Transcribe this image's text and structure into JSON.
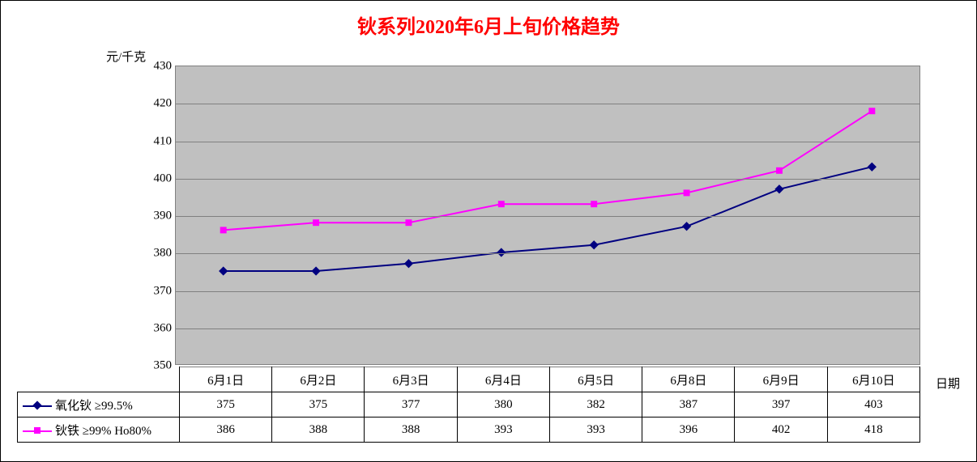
{
  "chart": {
    "type": "line",
    "title": "钬系列2020年6月上旬价格趋势",
    "title_color": "#ff0000",
    "title_fontsize": 24,
    "ylabel": "元/千克",
    "xlabel": "日期",
    "background_color": "#c0c0c0",
    "grid_color": "#808080",
    "plot_border_color": "#808080",
    "ylim": [
      350,
      430
    ],
    "ytick_step": 10,
    "yticks": [
      350,
      360,
      370,
      380,
      390,
      400,
      410,
      420,
      430
    ],
    "categories": [
      "6月1日",
      "6月2日",
      "6月3日",
      "6月4日",
      "6月5日",
      "6月8日",
      "6月9日",
      "6月10日"
    ],
    "series": [
      {
        "name": "氧化钬 ≥99.5%",
        "values": [
          375,
          375,
          377,
          380,
          382,
          387,
          397,
          403
        ],
        "line_color": "#000080",
        "marker": "diamond",
        "marker_color": "#000080",
        "line_width": 2
      },
      {
        "name": "钬铁 ≥99% Ho80%",
        "values": [
          386,
          388,
          388,
          393,
          393,
          396,
          402,
          418
        ],
        "line_color": "#ff00ff",
        "marker": "square",
        "marker_color": "#ff00ff",
        "line_width": 2
      }
    ]
  }
}
